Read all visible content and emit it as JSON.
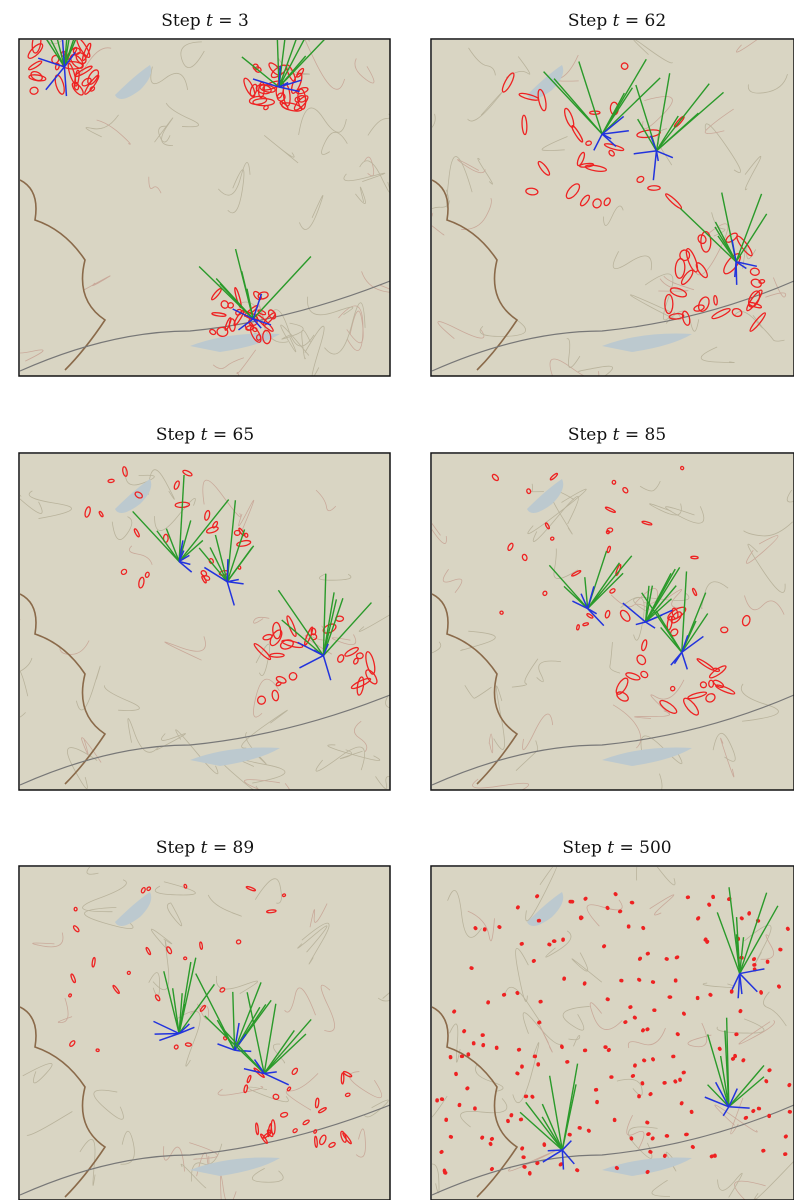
{
  "panels": [
    {
      "title": "Step t = 3"
    },
    {
      "title": "Step t = 62"
    },
    {
      "title": "Step t = 65"
    },
    {
      "title": "Step t = 85"
    },
    {
      "title": "Step t = 89"
    },
    {
      "title": "Step t = 500"
    }
  ]
}
